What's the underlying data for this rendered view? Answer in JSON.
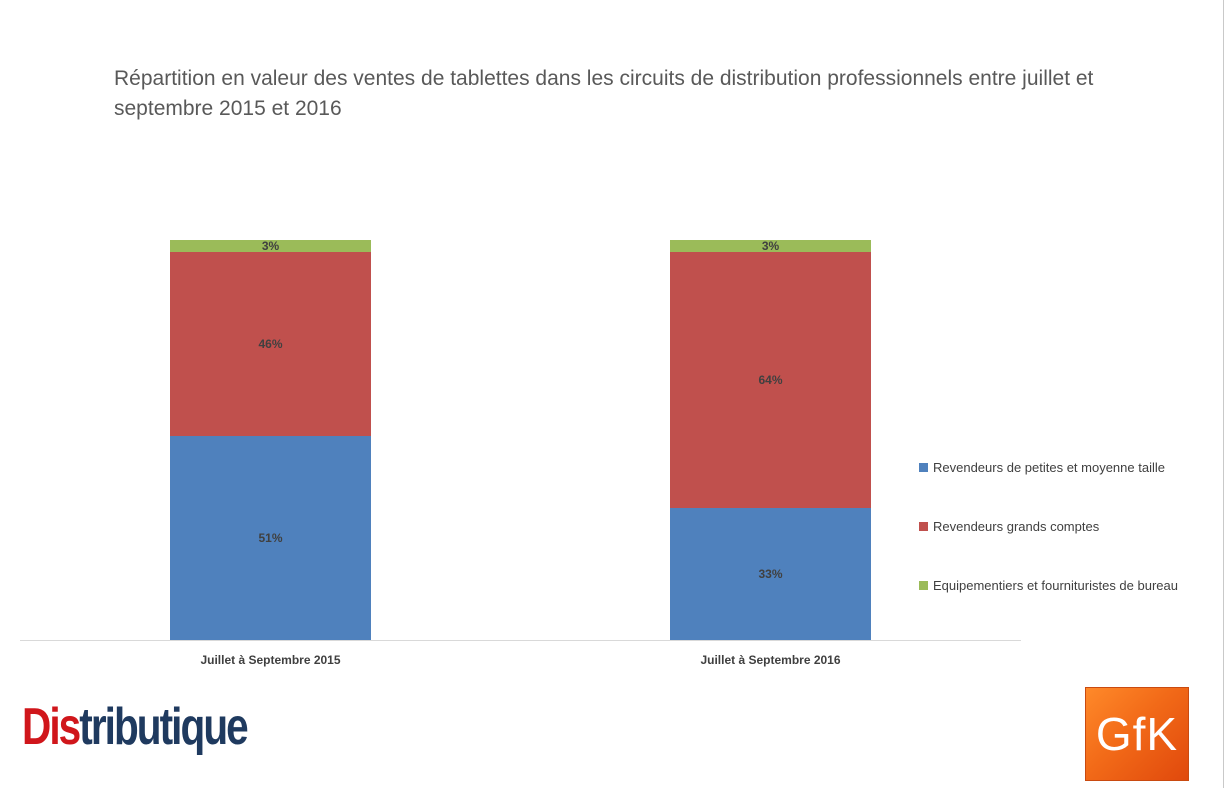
{
  "chart_data": {
    "type": "bar",
    "stacked": true,
    "title": "Répartition en valeur des ventes de tablettes dans les circuits de distribution professionnels entre juillet et septembre 2015 et 2016",
    "categories": [
      "Juillet à Septembre 2015",
      "Juillet à Septembre 2016"
    ],
    "series": [
      {
        "name": "Revendeurs de petites et moyenne taille",
        "values": [
          51,
          33
        ],
        "labels": [
          "51%",
          "33%"
        ],
        "color": "#4f81bd"
      },
      {
        "name": "Revendeurs grands comptes",
        "values": [
          46,
          64
        ],
        "labels": [
          "46%",
          "64%"
        ],
        "color": "#c0504d"
      },
      {
        "name": "Equipementiers et fournituristes de bureau",
        "values": [
          3,
          3
        ],
        "labels": [
          "3%",
          "3%"
        ],
        "color": "#9bbb59"
      }
    ],
    "ylim": [
      0,
      100
    ],
    "grid": false,
    "legend_position": "right"
  },
  "logos": {
    "left": {
      "text_red": "Dis",
      "text_dark": "tributique",
      "colors": {
        "red": "#d0161b",
        "dark": "#1f3a5f"
      }
    },
    "right": {
      "text": "GfK",
      "color": "#f26a18"
    }
  }
}
